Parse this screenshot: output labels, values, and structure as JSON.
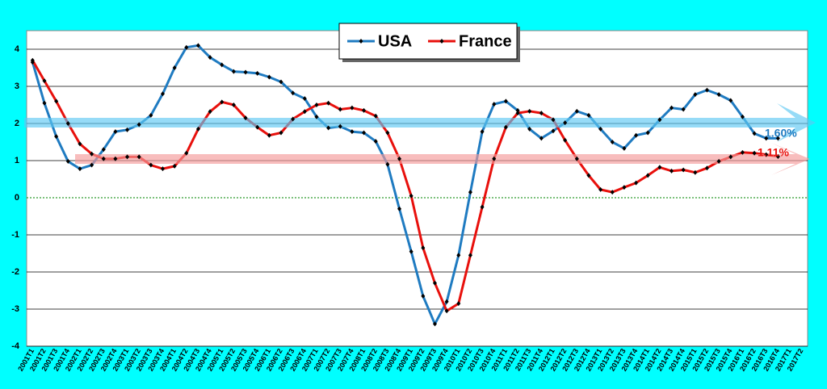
{
  "chart_data": {
    "type": "line",
    "categories": [
      "2001T1",
      "2001T2",
      "2001T3",
      "2001T4",
      "2002T1",
      "2002T2",
      "2002T3",
      "2002T4",
      "2003T1",
      "2003T2",
      "2003T3",
      "2003T4",
      "2004T1",
      "2004T2",
      "2004T3",
      "2004T4",
      "2005T1",
      "2005T2",
      "2005T3",
      "2005T4",
      "2006T1",
      "2006T2",
      "2006T3",
      "2006T4",
      "2007T1",
      "2007T2",
      "2007T3",
      "2007T4",
      "2008T1",
      "2008T2",
      "2008T3",
      "2008T4",
      "2009T1",
      "2009T2",
      "2009T3",
      "2009T4",
      "2010T1",
      "2010T2",
      "2010T3",
      "2010T4",
      "2011T1",
      "2011T2",
      "2011T3",
      "2011T4",
      "2012T1",
      "2012T2",
      "2012T3",
      "2012T4",
      "2013T1",
      "2013T2",
      "2013T3",
      "2013T4",
      "2014T1",
      "2014T2",
      "2014T3",
      "2014T4",
      "2015T1",
      "2015T2",
      "2015T3",
      "2015T4",
      "2016T1",
      "2016T2",
      "2016T3",
      "2016T4",
      "2017T1",
      "2017T2"
    ],
    "series": [
      {
        "name": "USA",
        "color": "#1f7bc1",
        "values": [
          3.65,
          2.55,
          1.65,
          0.98,
          0.78,
          0.88,
          1.3,
          1.78,
          1.83,
          1.97,
          2.22,
          2.8,
          3.5,
          4.05,
          4.1,
          3.78,
          3.58,
          3.4,
          3.38,
          3.35,
          3.25,
          3.12,
          2.82,
          2.67,
          2.18,
          1.88,
          1.92,
          1.78,
          1.75,
          1.52,
          0.9,
          -0.3,
          -1.45,
          -2.65,
          -3.4,
          -2.8,
          -1.55,
          0.15,
          1.78,
          2.52,
          2.6,
          2.35,
          1.85,
          1.6,
          1.8,
          2.02,
          2.33,
          2.22,
          1.85,
          1.5,
          1.33,
          1.68,
          1.75,
          2.1,
          2.42,
          2.38,
          2.78,
          2.9,
          2.78,
          2.62,
          2.18,
          1.73,
          1.6,
          1.6,
          null,
          null
        ]
      },
      {
        "name": "France",
        "color": "#e8100c",
        "values": [
          3.7,
          3.15,
          2.6,
          2.0,
          1.45,
          1.18,
          1.05,
          1.05,
          1.1,
          1.1,
          0.88,
          0.78,
          0.85,
          1.2,
          1.85,
          2.32,
          2.58,
          2.5,
          2.15,
          1.9,
          1.68,
          1.75,
          2.12,
          2.32,
          2.5,
          2.55,
          2.38,
          2.42,
          2.35,
          2.2,
          1.75,
          1.05,
          0.05,
          -1.35,
          -2.3,
          -3.05,
          -2.85,
          -1.55,
          -0.25,
          1.05,
          1.9,
          2.28,
          2.33,
          2.28,
          2.1,
          1.55,
          1.05,
          0.6,
          0.22,
          0.15,
          0.28,
          0.4,
          0.6,
          0.82,
          0.72,
          0.75,
          0.68,
          0.8,
          0.98,
          1.1,
          1.22,
          1.2,
          1.16,
          1.11,
          null,
          null
        ]
      }
    ],
    "annotations": [
      {
        "text": "1.60%",
        "color": "#1f7bc1"
      },
      {
        "text": "1.11%",
        "color": "#e8100c"
      }
    ],
    "ylim": [
      -4,
      4.5
    ],
    "yticks": [
      -4,
      -3,
      -2,
      -1,
      0,
      1,
      2,
      3,
      4
    ],
    "grid": true,
    "grid_color": "#000000",
    "zero_line_color": "#2e9c2e",
    "marker_color": "#000000"
  }
}
